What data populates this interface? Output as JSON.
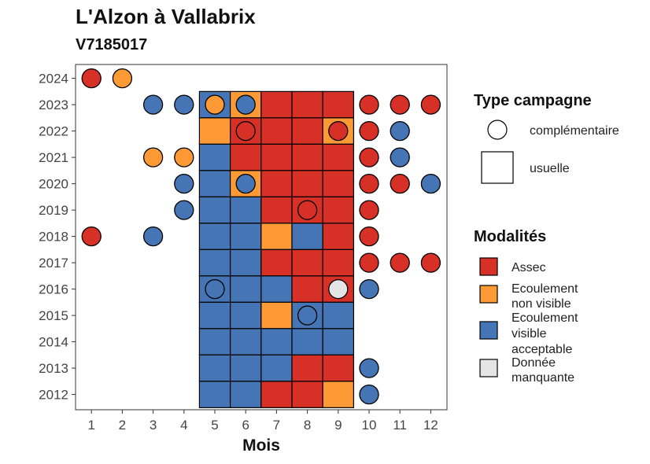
{
  "chart_data": {
    "type": "heatmap",
    "title": "L'Alzon à Vallabrix",
    "subtitle": "V7185017",
    "xlabel": "Mois",
    "ylabel": "",
    "x_categories": [
      "1",
      "2",
      "3",
      "4",
      "5",
      "6",
      "7",
      "8",
      "9",
      "10",
      "11",
      "12"
    ],
    "y_categories": [
      "2012",
      "2013",
      "2014",
      "2015",
      "2016",
      "2017",
      "2018",
      "2019",
      "2020",
      "2021",
      "2022",
      "2023",
      "2024"
    ],
    "modalities": [
      {
        "key": "assec",
        "label": "Assec",
        "color": "#D73027"
      },
      {
        "key": "nonvisible",
        "label": "Ecoulement non visible",
        "color": "#FD9A36"
      },
      {
        "key": "visible",
        "label": "Ecoulement visible acceptable",
        "color": "#4575B4"
      },
      {
        "key": "missing",
        "label": "Donnée manquante",
        "color": "#E5E5E5"
      }
    ],
    "campaign_types": [
      {
        "key": "complementaire",
        "label": "complémentaire",
        "shape": "circle"
      },
      {
        "key": "usuelle",
        "label": "usuelle",
        "shape": "square"
      }
    ],
    "legend_title_campaign": "Type campagne",
    "legend_title_modalities": "Modalités",
    "legend_position": "right",
    "grid": false,
    "usuelle": [
      {
        "year": "2023",
        "month": 5,
        "m": "visible"
      },
      {
        "year": "2023",
        "month": 6,
        "m": "nonvisible"
      },
      {
        "year": "2023",
        "month": 7,
        "m": "assec"
      },
      {
        "year": "2023",
        "month": 8,
        "m": "assec"
      },
      {
        "year": "2023",
        "month": 9,
        "m": "assec"
      },
      {
        "year": "2022",
        "month": 5,
        "m": "nonvisible"
      },
      {
        "year": "2022",
        "month": 6,
        "m": "assec"
      },
      {
        "year": "2022",
        "month": 7,
        "m": "assec"
      },
      {
        "year": "2022",
        "month": 8,
        "m": "assec"
      },
      {
        "year": "2022",
        "month": 9,
        "m": "nonvisible"
      },
      {
        "year": "2021",
        "month": 5,
        "m": "visible"
      },
      {
        "year": "2021",
        "month": 6,
        "m": "assec"
      },
      {
        "year": "2021",
        "month": 7,
        "m": "assec"
      },
      {
        "year": "2021",
        "month": 8,
        "m": "assec"
      },
      {
        "year": "2021",
        "month": 9,
        "m": "assec"
      },
      {
        "year": "2020",
        "month": 5,
        "m": "visible"
      },
      {
        "year": "2020",
        "month": 6,
        "m": "nonvisible"
      },
      {
        "year": "2020",
        "month": 7,
        "m": "assec"
      },
      {
        "year": "2020",
        "month": 8,
        "m": "assec"
      },
      {
        "year": "2020",
        "month": 9,
        "m": "assec"
      },
      {
        "year": "2019",
        "month": 5,
        "m": "visible"
      },
      {
        "year": "2019",
        "month": 6,
        "m": "visible"
      },
      {
        "year": "2019",
        "month": 7,
        "m": "assec"
      },
      {
        "year": "2019",
        "month": 8,
        "m": "assec"
      },
      {
        "year": "2019",
        "month": 9,
        "m": "assec"
      },
      {
        "year": "2018",
        "month": 5,
        "m": "visible"
      },
      {
        "year": "2018",
        "month": 6,
        "m": "visible"
      },
      {
        "year": "2018",
        "month": 7,
        "m": "nonvisible"
      },
      {
        "year": "2018",
        "month": 8,
        "m": "visible"
      },
      {
        "year": "2018",
        "month": 9,
        "m": "assec"
      },
      {
        "year": "2017",
        "month": 5,
        "m": "visible"
      },
      {
        "year": "2017",
        "month": 6,
        "m": "visible"
      },
      {
        "year": "2017",
        "month": 7,
        "m": "assec"
      },
      {
        "year": "2017",
        "month": 8,
        "m": "assec"
      },
      {
        "year": "2017",
        "month": 9,
        "m": "assec"
      },
      {
        "year": "2016",
        "month": 5,
        "m": "visible"
      },
      {
        "year": "2016",
        "month": 6,
        "m": "visible"
      },
      {
        "year": "2016",
        "month": 7,
        "m": "visible"
      },
      {
        "year": "2016",
        "month": 8,
        "m": "assec"
      },
      {
        "year": "2016",
        "month": 9,
        "m": "assec"
      },
      {
        "year": "2015",
        "month": 5,
        "m": "visible"
      },
      {
        "year": "2015",
        "month": 6,
        "m": "visible"
      },
      {
        "year": "2015",
        "month": 7,
        "m": "nonvisible"
      },
      {
        "year": "2015",
        "month": 8,
        "m": "visible"
      },
      {
        "year": "2015",
        "month": 9,
        "m": "visible"
      },
      {
        "year": "2014",
        "month": 5,
        "m": "visible"
      },
      {
        "year": "2014",
        "month": 6,
        "m": "visible"
      },
      {
        "year": "2014",
        "month": 7,
        "m": "visible"
      },
      {
        "year": "2014",
        "month": 8,
        "m": "visible"
      },
      {
        "year": "2014",
        "month": 9,
        "m": "visible"
      },
      {
        "year": "2013",
        "month": 5,
        "m": "visible"
      },
      {
        "year": "2013",
        "month": 6,
        "m": "visible"
      },
      {
        "year": "2013",
        "month": 7,
        "m": "visible"
      },
      {
        "year": "2013",
        "month": 8,
        "m": "assec"
      },
      {
        "year": "2013",
        "month": 9,
        "m": "assec"
      },
      {
        "year": "2012",
        "month": 5,
        "m": "visible"
      },
      {
        "year": "2012",
        "month": 6,
        "m": "visible"
      },
      {
        "year": "2012",
        "month": 7,
        "m": "assec"
      },
      {
        "year": "2012",
        "month": 8,
        "m": "assec"
      },
      {
        "year": "2012",
        "month": 9,
        "m": "nonvisible"
      }
    ],
    "complementaire": [
      {
        "year": "2024",
        "month": 1,
        "m": "assec"
      },
      {
        "year": "2024",
        "month": 2,
        "m": "nonvisible"
      },
      {
        "year": "2023",
        "month": 3,
        "m": "visible"
      },
      {
        "year": "2023",
        "month": 4,
        "m": "visible"
      },
      {
        "year": "2023",
        "month": 5,
        "m": "nonvisible"
      },
      {
        "year": "2023",
        "month": 6,
        "m": "visible"
      },
      {
        "year": "2023",
        "month": 10,
        "m": "assec"
      },
      {
        "year": "2023",
        "month": 11,
        "m": "assec"
      },
      {
        "year": "2023",
        "month": 12,
        "m": "assec"
      },
      {
        "year": "2022",
        "month": 6,
        "m": "assec"
      },
      {
        "year": "2022",
        "month": 9,
        "m": "assec"
      },
      {
        "year": "2022",
        "month": 10,
        "m": "assec"
      },
      {
        "year": "2022",
        "month": 11,
        "m": "visible"
      },
      {
        "year": "2021",
        "month": 3,
        "m": "nonvisible"
      },
      {
        "year": "2021",
        "month": 4,
        "m": "nonvisible"
      },
      {
        "year": "2021",
        "month": 10,
        "m": "assec"
      },
      {
        "year": "2021",
        "month": 11,
        "m": "visible"
      },
      {
        "year": "2020",
        "month": 4,
        "m": "visible"
      },
      {
        "year": "2020",
        "month": 6,
        "m": "visible"
      },
      {
        "year": "2020",
        "month": 10,
        "m": "assec"
      },
      {
        "year": "2020",
        "month": 11,
        "m": "assec"
      },
      {
        "year": "2020",
        "month": 12,
        "m": "visible"
      },
      {
        "year": "2019",
        "month": 4,
        "m": "visible"
      },
      {
        "year": "2019",
        "month": 8,
        "m": "assec"
      },
      {
        "year": "2019",
        "month": 10,
        "m": "assec"
      },
      {
        "year": "2018",
        "month": 1,
        "m": "assec"
      },
      {
        "year": "2018",
        "month": 3,
        "m": "visible"
      },
      {
        "year": "2018",
        "month": 10,
        "m": "assec"
      },
      {
        "year": "2017",
        "month": 10,
        "m": "assec"
      },
      {
        "year": "2017",
        "month": 11,
        "m": "assec"
      },
      {
        "year": "2017",
        "month": 12,
        "m": "assec"
      },
      {
        "year": "2016",
        "month": 5,
        "m": "visible"
      },
      {
        "year": "2016",
        "month": 9,
        "m": "missing"
      },
      {
        "year": "2016",
        "month": 10,
        "m": "visible"
      },
      {
        "year": "2015",
        "month": 8,
        "m": "visible"
      },
      {
        "year": "2013",
        "month": 10,
        "m": "visible"
      },
      {
        "year": "2012",
        "month": 10,
        "m": "visible"
      }
    ]
  }
}
